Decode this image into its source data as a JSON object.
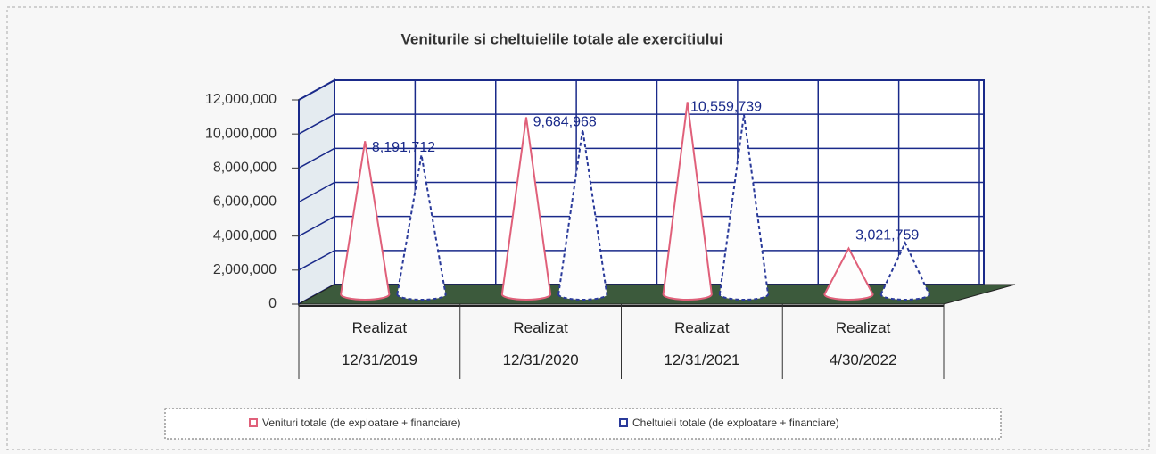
{
  "chart_data": {
    "type": "cone3d",
    "title": "Veniturile si cheltuielile totale ale exercitiului",
    "categories": [
      "Realizat 12/31/2019",
      "Realizat 12/31/2020",
      "Realizat 12/31/2021",
      "Realizat 4/30/2022"
    ],
    "series": [
      {
        "name": "Venituri totale (de exploatare + financiare)",
        "color": "#e0607a",
        "values": [
          9000000,
          10400000,
          11300000,
          2700000
        ]
      },
      {
        "name": "Cheltuieli totale (de exploatare + financiare)",
        "color": "#2a3a9a",
        "values": [
          8191712,
          9684968,
          10559739,
          3021759
        ],
        "value_labels": [
          "8,191,712",
          "9,684,968",
          "10,559,739",
          "3,021,759"
        ]
      }
    ],
    "ylim": [
      0,
      12000000
    ],
    "yticks": [
      0,
      {
        "value": 2000000,
        "label": "2,000,000"
      },
      {
        "value": 4000000,
        "label": "4,000,000"
      },
      {
        "value": 6000000,
        "label": "6,000,000"
      },
      {
        "value": 8000000,
        "label": "8,000,000"
      },
      {
        "value": 10000000,
        "label": "10,000,000"
      },
      {
        "value": 12000000,
        "label": "12,000,000"
      }
    ],
    "grid": true
  }
}
